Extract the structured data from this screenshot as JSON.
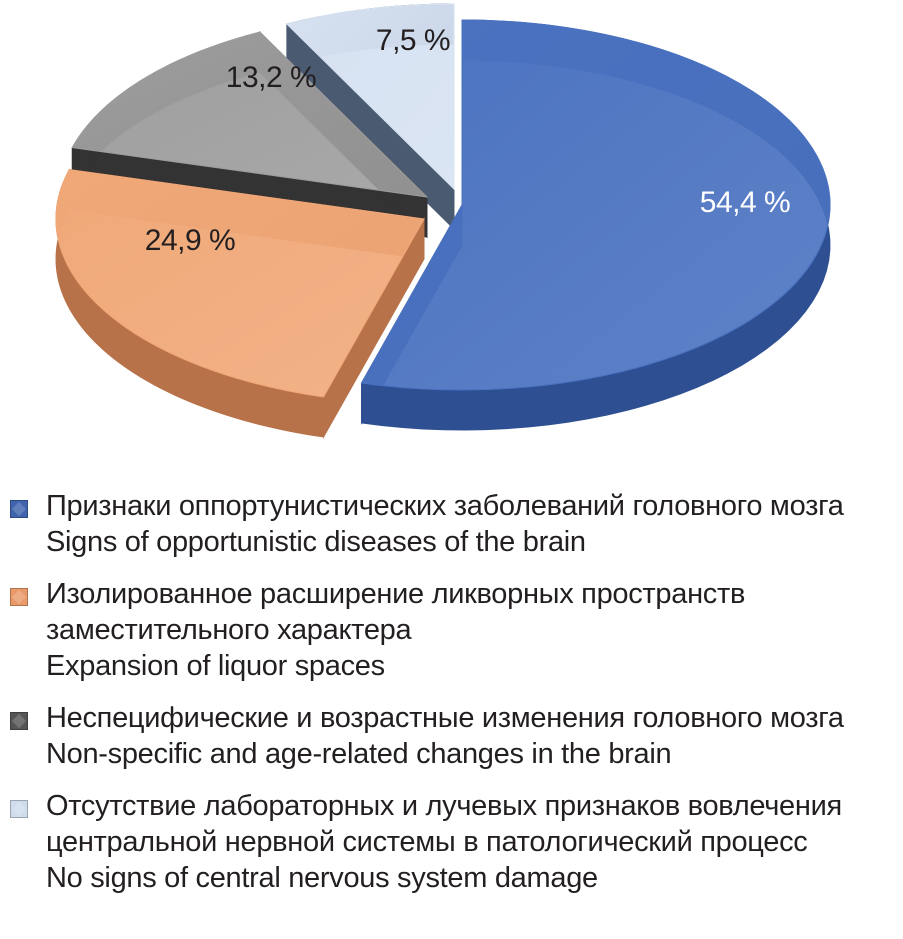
{
  "chart_data": {
    "type": "pie",
    "categories": [
      "Признаки оппортунистических заболеваний головного мозга / Signs of opportunistic diseases of the brain",
      "Изолированное расширение ликворных пространств заместительного характера / Expansion of liquor spaces",
      "Неспецифические и возрастные изменения головного мозга / Non-specific and age-related changes in the brain",
      "Отсутствие лабораторных и лучевых признаков вовлечения центральной нервной системы в патологический процесс / No signs of central nervous system damage"
    ],
    "values": [
      54.4,
      24.9,
      13.2,
      7.5
    ],
    "value_labels": [
      "54,4 %",
      "24,9 %",
      "13,2 %",
      "7,5 %"
    ],
    "colors": [
      "#4a72c0",
      "#f0a878",
      "#9d9d9d",
      "#d6e2f2"
    ],
    "side_colors": [
      "#2e4f91",
      "#b8724a",
      "#333333",
      "#4a5a70"
    ],
    "label_colors": [
      "#ffffff",
      "#231f20",
      "#231f20",
      "#231f20"
    ],
    "style": "3d-exploded",
    "legend_position": "bottom"
  },
  "legend": {
    "items": [
      {
        "lines": [
          "Признаки оппортунистических заболеваний головного мозга",
          "Signs of opportunistic diseases of the brain"
        ],
        "color": "#3f63ad"
      },
      {
        "lines": [
          "Изолированное расширение ликворных пространств",
          "заместительного характера",
          "Expansion of liquor spaces"
        ],
        "color": "#e99a68"
      },
      {
        "lines": [
          "Неспецифические и возрастные изменения головного мозга",
          "Non-specific and age-related changes in the brain"
        ],
        "color": "#555555"
      },
      {
        "lines": [
          "Отсутствие лабораторных и лучевых признаков вовлечения",
          "центральной нервной системы в патологический процесс",
          "No signs of central nervous system damage"
        ],
        "color": "#cfdcec"
      }
    ]
  }
}
